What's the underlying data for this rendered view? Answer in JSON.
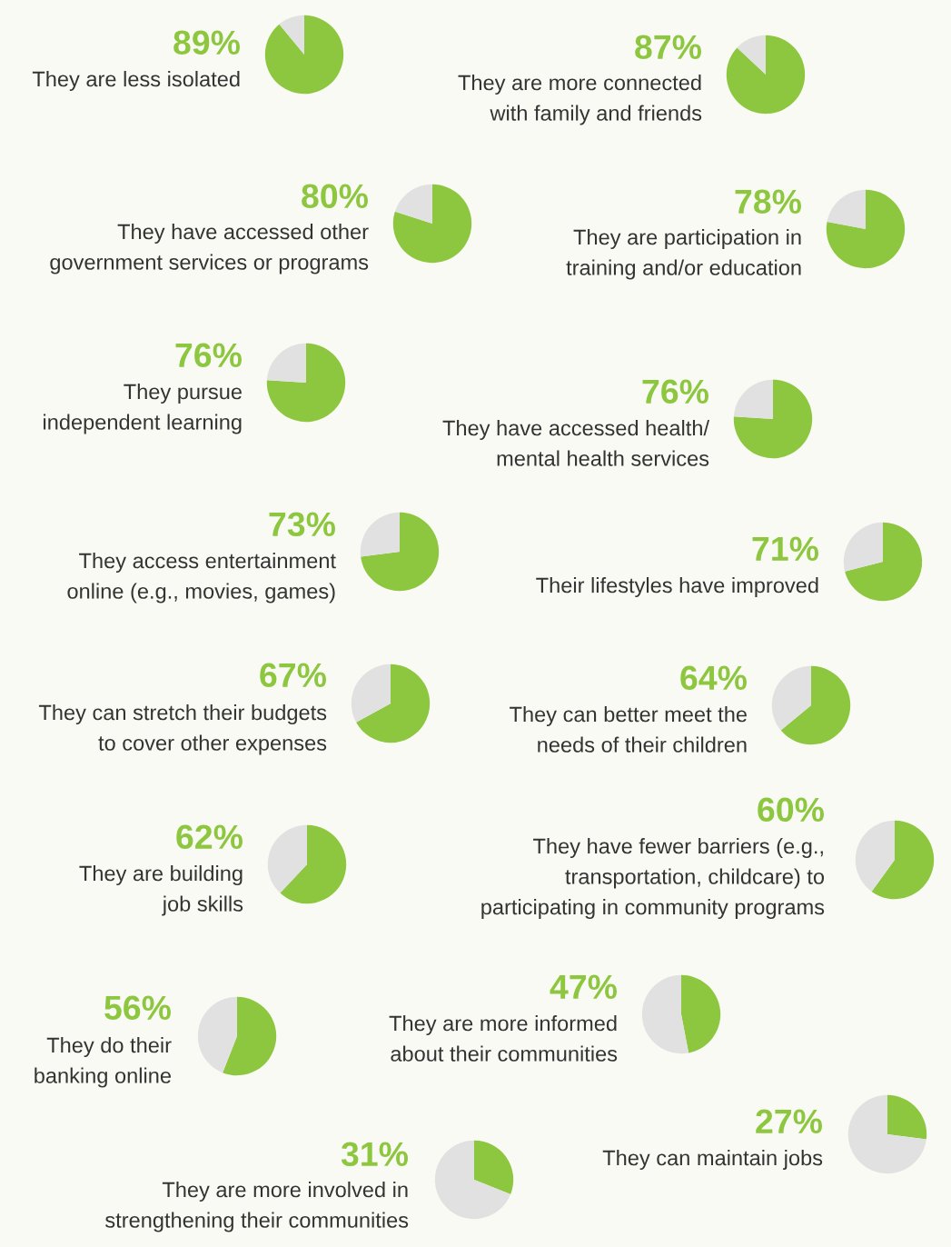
{
  "chart_data": [
    {
      "type": "pie",
      "title": "89%",
      "subtitle": "They are less isolated",
      "categories": [
        null,
        null
      ],
      "values": [
        89,
        11
      ],
      "colors": [
        "#8dc63f",
        "#e1e1e1"
      ]
    },
    {
      "type": "pie",
      "title": "87%",
      "subtitle": "They are more connected\nwith family and friends",
      "categories": [
        null,
        null
      ],
      "values": [
        87,
        13
      ],
      "colors": [
        "#8dc63f",
        "#e1e1e1"
      ]
    },
    {
      "type": "pie",
      "title": "80%",
      "subtitle": "They have accessed other\ngovernment services or programs",
      "categories": [
        null,
        null
      ],
      "values": [
        80,
        20
      ],
      "colors": [
        "#8dc63f",
        "#e1e1e1"
      ]
    },
    {
      "type": "pie",
      "title": "78%",
      "subtitle": "They are participation in\ntraining and/or education",
      "categories": [
        null,
        null
      ],
      "values": [
        78,
        22
      ],
      "colors": [
        "#8dc63f",
        "#e1e1e1"
      ]
    },
    {
      "type": "pie",
      "title": "76%",
      "subtitle": "They pursue\nindependent learning",
      "categories": [
        null,
        null
      ],
      "values": [
        76,
        24
      ],
      "colors": [
        "#8dc63f",
        "#e1e1e1"
      ]
    },
    {
      "type": "pie",
      "title": "76%",
      "subtitle": "They have accessed health/\nmental health services",
      "categories": [
        null,
        null
      ],
      "values": [
        76,
        24
      ],
      "colors": [
        "#8dc63f",
        "#e1e1e1"
      ]
    },
    {
      "type": "pie",
      "title": "73%",
      "subtitle": "They access entertainment\nonline (e.g., movies, games)",
      "categories": [
        null,
        null
      ],
      "values": [
        73,
        27
      ],
      "colors": [
        "#8dc63f",
        "#e1e1e1"
      ]
    },
    {
      "type": "pie",
      "title": "71%",
      "subtitle": "Their lifestyles have improved",
      "categories": [
        null,
        null
      ],
      "values": [
        71,
        29
      ],
      "colors": [
        "#8dc63f",
        "#e1e1e1"
      ]
    },
    {
      "type": "pie",
      "title": "67%",
      "subtitle": "They can stretch their budgets\nto cover other expenses",
      "categories": [
        null,
        null
      ],
      "values": [
        67,
        33
      ],
      "colors": [
        "#8dc63f",
        "#e1e1e1"
      ]
    },
    {
      "type": "pie",
      "title": "64%",
      "subtitle": "They can better meet the\nneeds of their children",
      "categories": [
        null,
        null
      ],
      "values": [
        64,
        36
      ],
      "colors": [
        "#8dc63f",
        "#e1e1e1"
      ]
    },
    {
      "type": "pie",
      "title": "62%",
      "subtitle": "They are building\njob skills",
      "categories": [
        null,
        null
      ],
      "values": [
        62,
        38
      ],
      "colors": [
        "#8dc63f",
        "#e1e1e1"
      ]
    },
    {
      "type": "pie",
      "title": "60%",
      "subtitle": "They have fewer barriers (e.g.,\ntransportation, childcare) to\nparticipating in community programs",
      "categories": [
        null,
        null
      ],
      "values": [
        60,
        40
      ],
      "colors": [
        "#8dc63f",
        "#e1e1e1"
      ]
    },
    {
      "type": "pie",
      "title": "56%",
      "subtitle": "They do their\nbanking online",
      "categories": [
        null,
        null
      ],
      "values": [
        56,
        44
      ],
      "colors": [
        "#8dc63f",
        "#e1e1e1"
      ]
    },
    {
      "type": "pie",
      "title": "47%",
      "subtitle": "They are more informed\nabout their communities",
      "categories": [
        null,
        null
      ],
      "values": [
        47,
        53
      ],
      "colors": [
        "#8dc63f",
        "#e1e1e1"
      ]
    },
    {
      "type": "pie",
      "title": "27%",
      "subtitle": "They can maintain jobs",
      "categories": [
        null,
        null
      ],
      "values": [
        27,
        73
      ],
      "colors": [
        "#8dc63f",
        "#e1e1e1"
      ]
    },
    {
      "type": "pie",
      "title": "31%",
      "subtitle": "They are more involved in\nstrengthening their communities",
      "categories": [
        null,
        null
      ],
      "values": [
        31,
        69
      ],
      "colors": [
        "#8dc63f",
        "#e1e1e1"
      ]
    }
  ]
}
